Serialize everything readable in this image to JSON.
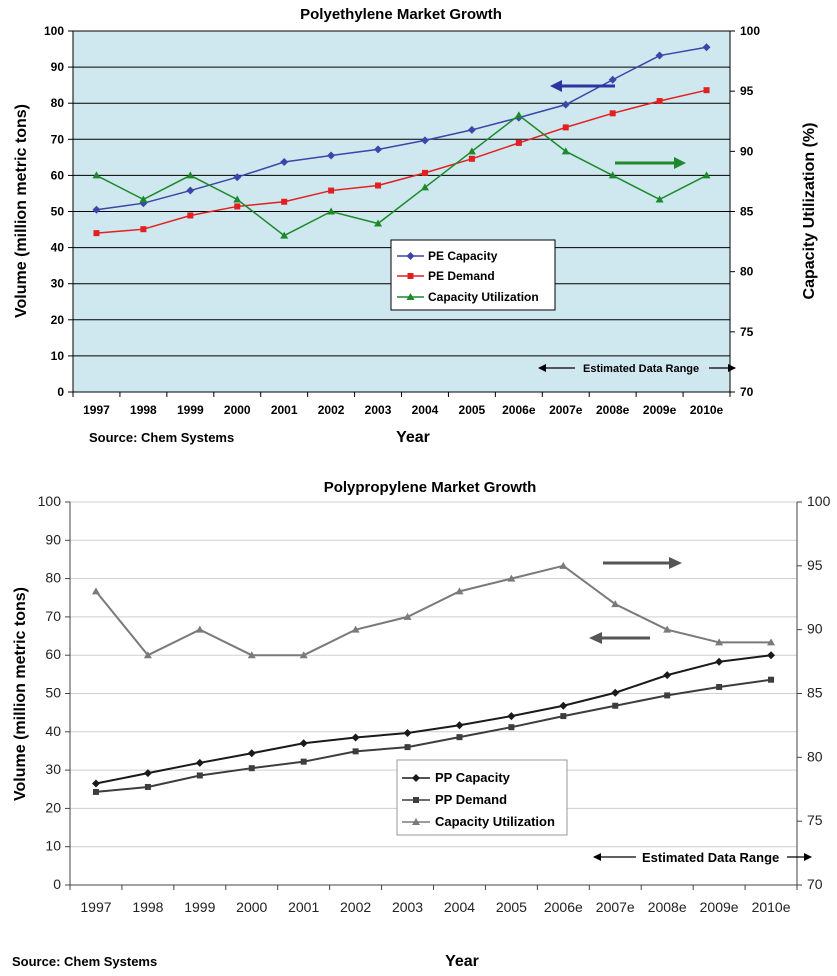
{
  "chart_data": [
    {
      "type": "line",
      "title": "Polyethylene Market Growth",
      "xlabel": "Year",
      "ylabel": "Volume (million metric tons)",
      "y2label": "Capacity Utilization (%)",
      "categories": [
        "1997",
        "1998",
        "1999",
        "2000",
        "2001",
        "2002",
        "2003",
        "2004",
        "2005",
        "2006e",
        "2007e",
        "2008e",
        "2009e",
        "2010e"
      ],
      "ylim": [
        0,
        100
      ],
      "y2lim": [
        70,
        100
      ],
      "yticks": [
        0,
        10,
        20,
        30,
        40,
        50,
        60,
        70,
        80,
        90,
        100
      ],
      "y2ticks": [
        70,
        75,
        80,
        85,
        90,
        95,
        100
      ],
      "series": [
        {
          "name": "PE Capacity",
          "axis": "left",
          "color": "#3a46a8",
          "marker": "diamond",
          "values": [
            50.5,
            52.3,
            55.8,
            59.5,
            63.7,
            65.5,
            67.2,
            69.7,
            72.6,
            76.0,
            79.6,
            86.5,
            93.2,
            95.5
          ]
        },
        {
          "name": "PE Demand",
          "axis": "left",
          "color": "#e22020",
          "marker": "square",
          "values": [
            44.0,
            45.1,
            48.9,
            51.4,
            52.7,
            55.8,
            57.2,
            60.7,
            64.6,
            69.0,
            73.3,
            77.2,
            80.6,
            83.6
          ]
        },
        {
          "name": "Capacity Utilization",
          "axis": "right",
          "color": "#1c8a2a",
          "marker": "triangle",
          "values": [
            88.0,
            86.0,
            88.0,
            86.0,
            83.0,
            85.0,
            84.0,
            87.0,
            90.0,
            93.0,
            90.0,
            88.0,
            86.0,
            88.0
          ]
        }
      ],
      "annotation": "Estimated Data Range",
      "source": "Source: Chem Systems",
      "background": "#cfe8ef",
      "grid": true,
      "legend_position": "center"
    },
    {
      "type": "line",
      "title": "Polypropylene Market Growth",
      "xlabel": "Year",
      "ylabel": "Volume (million metric tons)",
      "categories": [
        "1997",
        "1998",
        "1999",
        "2000",
        "2001",
        "2002",
        "2003",
        "2004",
        "2005",
        "2006e",
        "2007e",
        "2008e",
        "2009e",
        "2010e"
      ],
      "ylim": [
        0,
        100
      ],
      "y2lim": [
        70,
        100
      ],
      "yticks": [
        0,
        10,
        20,
        30,
        40,
        50,
        60,
        70,
        80,
        90,
        100
      ],
      "y2ticks": [
        70,
        75,
        80,
        85,
        90,
        95,
        100
      ],
      "series": [
        {
          "name": "PP Capacity",
          "axis": "left",
          "color": "#1a1a1a",
          "marker": "diamond",
          "values": [
            26.5,
            29.2,
            31.9,
            34.4,
            37.0,
            38.5,
            39.7,
            41.7,
            44.1,
            46.8,
            50.2,
            54.8,
            58.3,
            60.0
          ]
        },
        {
          "name": "PP Demand",
          "axis": "left",
          "color": "#3d3d3d",
          "marker": "square",
          "values": [
            24.3,
            25.6,
            28.6,
            30.5,
            32.2,
            34.9,
            36.0,
            38.6,
            41.2,
            44.1,
            46.8,
            49.5,
            51.7,
            53.6
          ]
        },
        {
          "name": "Capacity Utilization",
          "axis": "right",
          "color": "#7a7a7a",
          "marker": "triangle",
          "values": [
            93.0,
            88.0,
            90.0,
            88.0,
            88.0,
            90.0,
            91.0,
            93.0,
            94.0,
            95.0,
            92.0,
            90.0,
            89.0,
            89.0
          ]
        }
      ],
      "annotation": "Estimated Data Range",
      "source": "Source: Chem Systems",
      "background": "#ffffff",
      "grid": true,
      "legend_position": "center"
    }
  ]
}
